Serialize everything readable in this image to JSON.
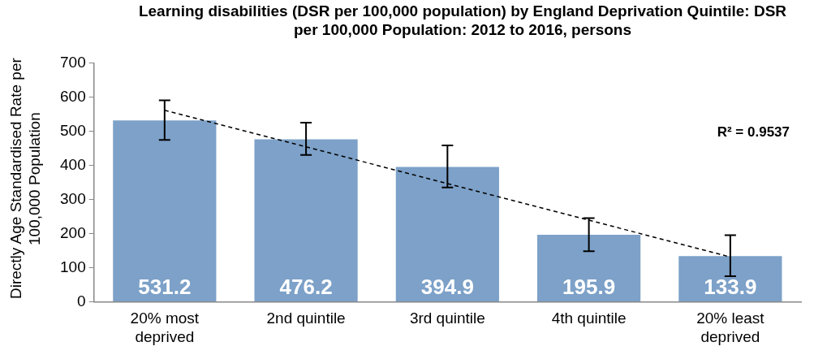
{
  "chart_data": {
    "type": "bar",
    "title": "Learning disabilities (DSR per 100,000 population) by England Deprivation Quintile: DSR per 100,000 Population: 2012 to 2016, persons",
    "ylabel": "Directly Age Standardised Rate per 100,000 Population",
    "categories": [
      "20% most deprived",
      "2nd quintile",
      "3rd quintile",
      "4th quintile",
      "20% least deprived"
    ],
    "series": [
      {
        "color": "#7da1c8",
        "values": [
          531.2,
          476.2,
          394.9,
          195.9,
          133.9
        ],
        "value_labels": [
          "531.2",
          "476.2",
          "394.9",
          "195.9",
          "133.9"
        ],
        "errors": [
          [
            474,
            590
          ],
          [
            430,
            525
          ],
          [
            335,
            458
          ],
          [
            148,
            245
          ],
          [
            75,
            195
          ]
        ]
      },
      {
        "type": "line",
        "color": "#000000",
        "line_style": "dashed",
        "marker": "none",
        "values": [
          561,
          454,
          346,
          239,
          131
        ]
      }
    ],
    "annotations": [
      "R² = 0.9537"
    ],
    "grid": false,
    "legend": false,
    "ylim": [
      0,
      700
    ],
    "yticks": [
      0,
      100,
      200,
      300,
      400,
      500,
      600,
      700
    ]
  }
}
